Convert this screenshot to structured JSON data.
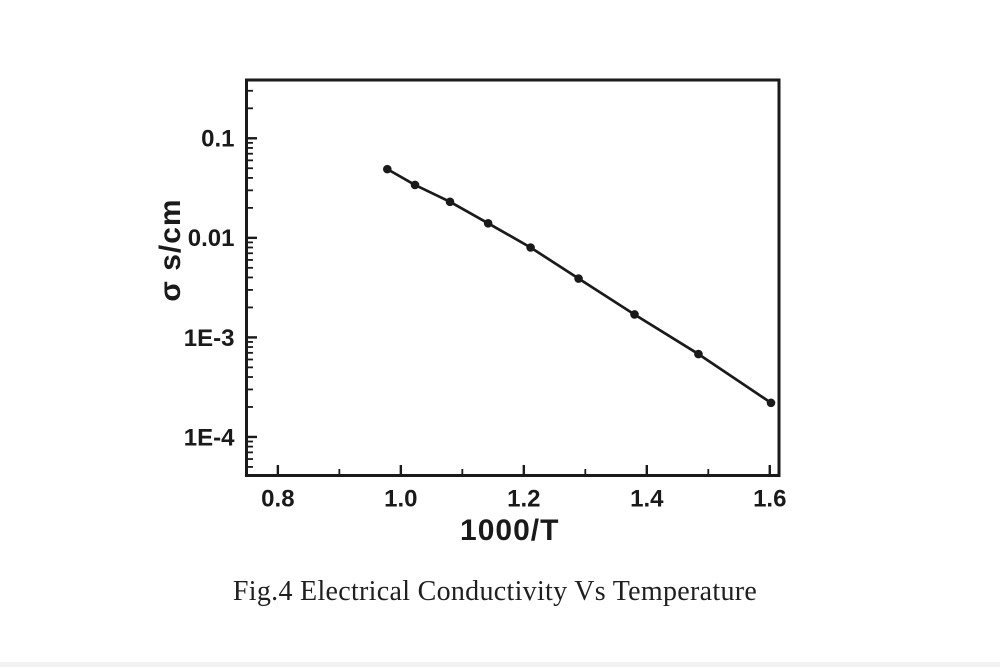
{
  "caption": "Fig.4 Electrical Conductivity Vs Temperature",
  "colors": {
    "ink": "#1a1a1a",
    "background": "#ffffff",
    "page_edge": "#f2f2f2"
  },
  "chart_data": {
    "type": "line",
    "title": "Fig.4 Electrical Conductivity Vs Temperature",
    "xlabel": "1000/T",
    "ylabel": "σ s/cm",
    "xscale": "linear",
    "yscale": "log",
    "xlim": [
      0.749,
      1.615
    ],
    "ylim": [
      4.1e-05,
      0.385
    ],
    "grid": false,
    "legend": false,
    "marker": "circle",
    "x": [
      0.978,
      1.023,
      1.08,
      1.142,
      1.211,
      1.289,
      1.38,
      1.484,
      1.602
    ],
    "series": [
      {
        "name": "electrical-conductivity",
        "values": [
          0.049,
          0.034,
          0.023,
          0.014,
          0.008,
          0.0039,
          0.0017,
          0.00068,
          0.00022
        ]
      }
    ],
    "x_major_ticks": [
      0.8,
      1.0,
      1.2,
      1.4,
      1.6
    ],
    "x_major_labels": [
      "0.8",
      "1.0",
      "1.2",
      "1.4",
      "1.6"
    ],
    "x_minor_ticks": [
      0.9,
      1.1,
      1.3,
      1.5
    ],
    "y_major_ticks": [
      0.1,
      0.01,
      0.001,
      0.0001
    ],
    "y_major_labels": [
      "0.1",
      "0.01",
      "1E-3",
      "1E-4"
    ]
  }
}
